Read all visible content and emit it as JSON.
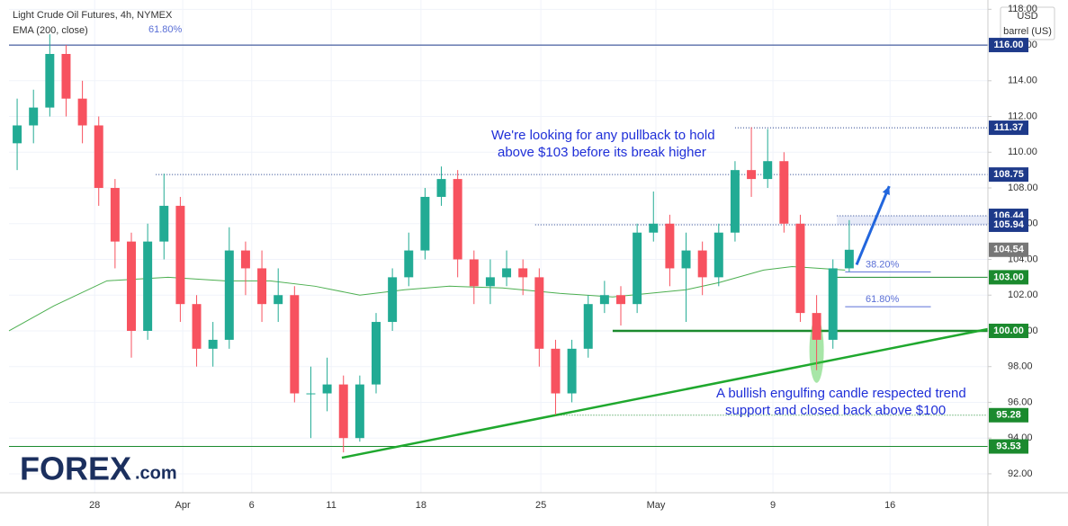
{
  "chart_data": {
    "type": "candlestick",
    "title": "Light Crude Oil Futures, 4h, NYMEX",
    "indicator_label": "EMA (200, close)",
    "currency": "USD",
    "unit": "barrel (US)",
    "xlim": [
      0,
      240
    ],
    "ylim": [
      90.94,
      118.52
    ],
    "xticks": [
      {
        "value": 21,
        "label": "28"
      },
      {
        "value": 42.6,
        "label": "Apr"
      },
      {
        "value": 59.5,
        "label": "6"
      },
      {
        "value": 79,
        "label": "11"
      },
      {
        "value": 101,
        "label": "18"
      },
      {
        "value": 130.4,
        "label": "25"
      },
      {
        "value": 158.6,
        "label": "May"
      },
      {
        "value": 187.3,
        "label": "9"
      },
      {
        "value": 216,
        "label": "16"
      }
    ],
    "yticks": [
      {
        "value": 92,
        "label": "92.00"
      },
      {
        "value": 94,
        "label": "94.00"
      },
      {
        "value": 96,
        "label": "96.00"
      },
      {
        "value": 98,
        "label": "98.00"
      },
      {
        "value": 100,
        "label": "100.00"
      },
      {
        "value": 102,
        "label": "102.00"
      },
      {
        "value": 104,
        "label": "104.00"
      },
      {
        "value": 106,
        "label": "106.00"
      },
      {
        "value": 108,
        "label": "108.00"
      },
      {
        "value": 110,
        "label": "110.00"
      },
      {
        "value": 112,
        "label": "112.00"
      },
      {
        "value": 114,
        "label": "114.00"
      },
      {
        "value": 116,
        "label": "116.00"
      },
      {
        "value": 118,
        "label": "118.00"
      }
    ],
    "up_color": "#22ab94",
    "down_color": "#f7525f",
    "x": [
      2,
      6,
      10,
      14,
      18,
      22,
      26,
      30,
      34,
      38,
      42,
      46,
      50,
      54,
      58,
      62,
      66,
      70,
      74,
      78,
      82,
      86,
      90,
      94,
      98,
      102,
      106,
      110,
      114,
      118,
      122,
      126,
      130,
      134,
      138,
      142,
      146,
      150,
      154,
      158,
      162,
      166,
      170,
      174,
      178,
      182,
      186,
      190,
      194,
      198,
      202,
      206
    ],
    "open": [
      110.5,
      111.5,
      112.5,
      115.5,
      113,
      111.5,
      108,
      105,
      100,
      105,
      107,
      101.5,
      99,
      99.5,
      104.5,
      103.5,
      101.5,
      102,
      96.5,
      96.5,
      97,
      94,
      97,
      100.5,
      103,
      104.5,
      107.5,
      108.5,
      104,
      102.5,
      103,
      103.5,
      103,
      99,
      96.5,
      99,
      101.5,
      102,
      101.5,
      105.5,
      106,
      103.5,
      104.5,
      103,
      105.5,
      109,
      108.5,
      109.5,
      106,
      101,
      99.5,
      103.5
    ],
    "high": [
      113,
      113.5,
      116.6,
      116,
      114,
      112,
      108.5,
      105.5,
      106,
      108.8,
      107.5,
      102,
      100.5,
      105.8,
      105,
      104.5,
      103.5,
      102.5,
      98,
      98.5,
      97.5,
      97.5,
      101,
      103.5,
      105.5,
      108,
      109.2,
      109,
      104.5,
      104,
      104.5,
      104,
      103.5,
      99.5,
      99.5,
      102,
      102.8,
      102.5,
      106,
      107.8,
      106.5,
      105.5,
      105,
      106,
      109.5,
      111.4,
      111.3,
      110,
      106.5,
      102,
      104,
      106.2
    ],
    "low": [
      109,
      110.5,
      112,
      112,
      110.5,
      107,
      103.5,
      98.5,
      99.5,
      104,
      100.5,
      98,
      98,
      99,
      102,
      100.5,
      100.5,
      96,
      94,
      95.5,
      93.2,
      93.8,
      96.5,
      100,
      102.5,
      104,
      107,
      103,
      101.5,
      101.5,
      102.5,
      102,
      98,
      95.3,
      96,
      98.5,
      101,
      100.3,
      101,
      105,
      102.5,
      100.5,
      102,
      102.5,
      105,
      107.5,
      108,
      105.5,
      100.5,
      97.8,
      99,
      103.3
    ],
    "close": [
      111.5,
      112.5,
      115.5,
      113,
      111.5,
      108,
      105,
      100,
      105,
      107,
      101.5,
      99,
      99.5,
      104.5,
      103.5,
      101.5,
      102,
      96.5,
      96.5,
      97,
      94,
      97,
      100.5,
      103,
      104.5,
      107.5,
      108.5,
      104,
      102.5,
      103,
      103.5,
      103,
      99,
      96.5,
      99,
      101.5,
      102,
      101.5,
      105.5,
      106,
      103.5,
      104.5,
      103,
      105.5,
      109,
      108.5,
      109.5,
      106,
      101,
      99.5,
      103.5,
      104.54
    ],
    "ema": {
      "color": "#4caf50",
      "x": [
        0,
        11,
        24,
        39,
        53,
        64,
        75,
        86,
        97,
        108,
        121,
        135,
        148,
        157,
        166,
        174,
        185,
        192,
        205
      ],
      "values": [
        100.0,
        101.4,
        102.8,
        103.0,
        102.8,
        102.8,
        102.5,
        102.0,
        102.3,
        102.5,
        102.4,
        102.1,
        101.9,
        102.1,
        102.3,
        102.7,
        103.4,
        103.6,
        103.4
      ]
    },
    "levels": [
      {
        "value": 116,
        "label": "116.00",
        "color": "#1e3a8a",
        "style": "solid",
        "from": 0
      },
      {
        "value": 111.37,
        "label": "111.37",
        "color": "#1e3a8a",
        "style": "dotted",
        "from": 178
      },
      {
        "value": 108.75,
        "label": "108.75",
        "color": "#1e3a8a",
        "style": "dotted",
        "from": 36
      },
      {
        "value": 106.44,
        "label": "106.44",
        "color": "#1e3a8a",
        "style": "dotted",
        "from": 203
      },
      {
        "value": 105.94,
        "label": "105.94",
        "color": "#1e3a8a",
        "style": "dotted",
        "from": 129
      },
      {
        "value": 104.54,
        "label": "104.54",
        "color": "#777777",
        "style": "none",
        "from": 240
      },
      {
        "value": 103,
        "label": "103.00",
        "color": "#1b8a2e",
        "style": "solid",
        "from": 203
      },
      {
        "value": 100,
        "label": "100.00",
        "color": "#1b8a2e",
        "style": "thick",
        "from": 148
      },
      {
        "value": 95.28,
        "label": "95.28",
        "color": "#1b8a2e",
        "style": "dotted",
        "from": 134
      },
      {
        "value": 93.53,
        "label": "93.53",
        "color": "#1b8a2e",
        "style": "solid",
        "from": 0
      }
    ],
    "fibs": [
      {
        "label": "38.20%",
        "value": 103.3
      },
      {
        "label": "61.80%",
        "value": 101.35
      }
    ],
    "fib_top_label": "61.80%",
    "trendline": {
      "x": [
        81.6,
        240
      ],
      "values": [
        92.9,
        100.1
      ]
    },
    "arrow": {
      "x": [
        207.8,
        215.8
      ],
      "values": [
        103.7,
        108.1
      ]
    },
    "annotations": [
      "We're looking for any pullback to hold",
      "above $103 before its break higher",
      "A bullish engulfing candle respected trend",
      "support and closed back above $100"
    ],
    "logo": {
      "brand": "FOREX",
      "suffix": ".com"
    }
  }
}
